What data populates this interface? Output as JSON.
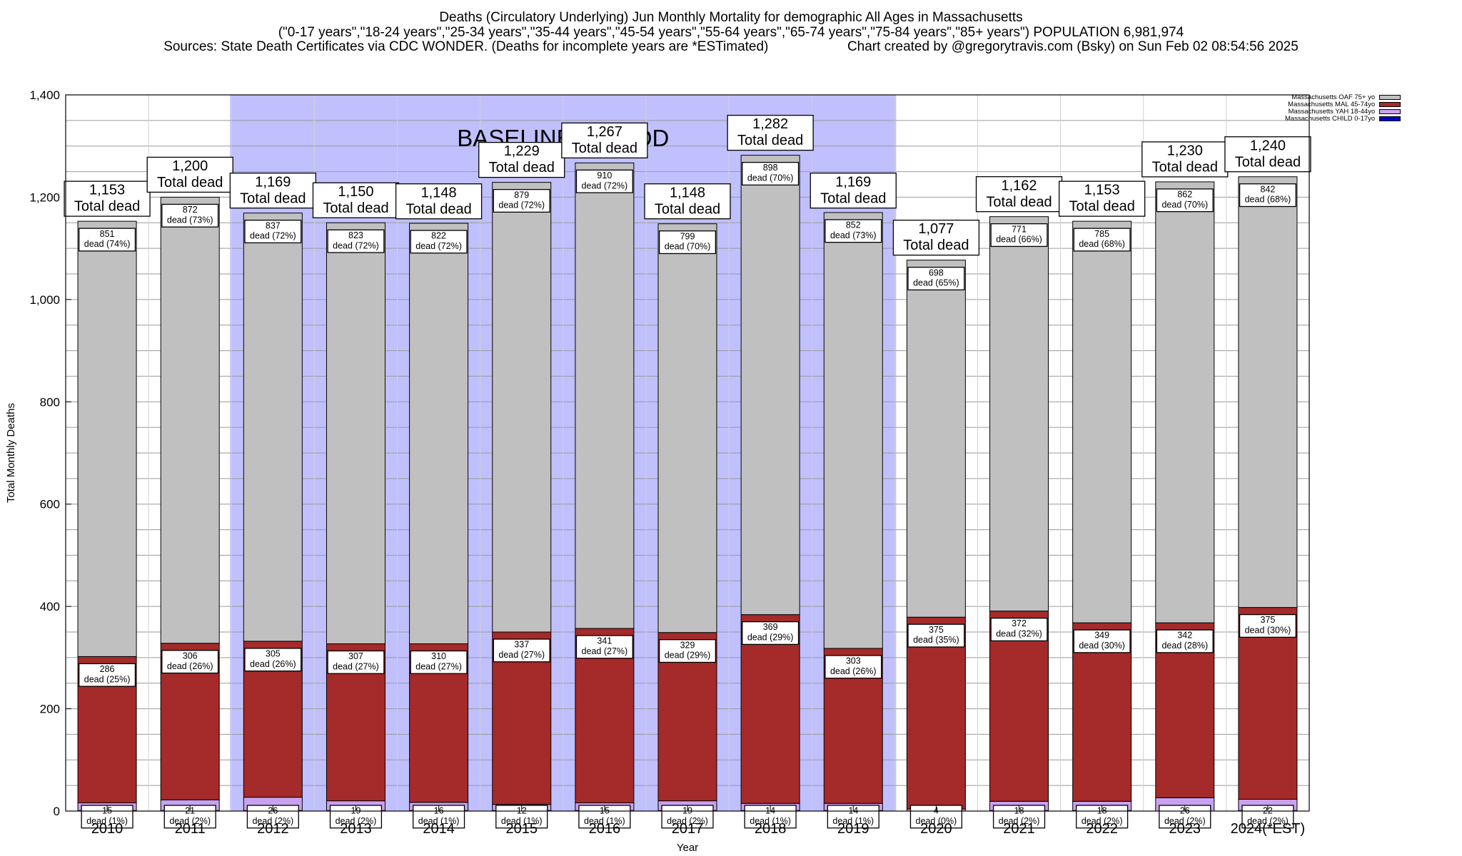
{
  "header": {
    "line1": "Deaths (Circulatory Underlying) Jun Monthly Mortality for demographic All Ages in Massachusetts",
    "line2": "(\"0-17 years\",\"18-24 years\",\"25-34 years\",\"35-44 years\",\"45-54 years\",\"55-64 years\",\"65-74 years\",\"75-84 years\",\"85+ years\") POPULATION 6,981,974",
    "line3_left": "Sources: State Death Certificates via CDC WONDER. (Deaths for incomplete years are *ESTimated)",
    "line3_right": "Chart created by @gregorytravis.com (Bsky) on Sun Feb 02 08:54:56 2025"
  },
  "legend": [
    {
      "label": "Massachusetts OAF 75+ yo",
      "color": "#c0c0c0"
    },
    {
      "label": "Massachusetts MAL 45-74yo",
      "color": "#a52a2a"
    },
    {
      "label": "Massachusetts YAH 18-44yo",
      "color": "#c8a2f0"
    },
    {
      "label": "Massachusetts CHILD 0-17yo",
      "color": "#0000cd"
    }
  ],
  "chart_data": {
    "type": "bar",
    "stacked": true,
    "title": "Deaths (Circulatory Underlying) Jun Monthly Mortality for demographic All Ages in Massachusetts",
    "xlabel": "Year",
    "ylabel": "Total Monthly Deaths",
    "ylim": [
      0,
      1400
    ],
    "yticks": [
      0,
      200,
      400,
      600,
      800,
      1000,
      1200,
      1400
    ],
    "ytick_labels": [
      "0",
      "200",
      "400",
      "600",
      "800",
      "1,000",
      "1,200",
      "1,400"
    ],
    "grid": true,
    "legend_position": "top-right",
    "baseline_label": "BASELINE PERIOD",
    "baseline_range": [
      "2012",
      "2019"
    ],
    "baseline_color": "#c0c0ff",
    "total_suffix": "Total dead",
    "dead_word": "dead",
    "categories": [
      "2010",
      "2011",
      "2012",
      "2013",
      "2014",
      "2015",
      "2016",
      "2017",
      "2018",
      "2019",
      "2020",
      "2021",
      "2022",
      "2023",
      "2024(*EST)"
    ],
    "totals": [
      1153,
      1200,
      1169,
      1150,
      1148,
      1229,
      1267,
      1148,
      1282,
      1169,
      1077,
      1162,
      1153,
      1230,
      1240
    ],
    "total_labels": [
      "1,153",
      "1,200",
      "1,169",
      "1,150",
      "1,148",
      "1,229",
      "1,267",
      "1,148",
      "1,282",
      "1,169",
      "1,077",
      "1,162",
      "1,153",
      "1,230",
      "1,240"
    ],
    "series": [
      {
        "name": "Massachusetts CHILD 0-17yo",
        "color": "#0000cd",
        "values": [
          1,
          1,
          1,
          1,
          1,
          1,
          1,
          1,
          1,
          1,
          0,
          1,
          1,
          0,
          1
        ]
      },
      {
        "name": "Massachusetts YAH 18-44yo",
        "color": "#c8a2f0",
        "values": [
          15,
          21,
          26,
          19,
          16,
          12,
          15,
          19,
          14,
          14,
          4,
          18,
          18,
          26,
          22
        ],
        "pct_labels": [
          "(1%)",
          "(2%)",
          "(2%)",
          "(2%)",
          "(1%)",
          "(1%)",
          "(1%)",
          "(2%)",
          "(1%)",
          "(1%)",
          "(0%)",
          "(2%)",
          "(2%)",
          "(2%)",
          "(2%)"
        ]
      },
      {
        "name": "Massachusetts MAL 45-74yo",
        "color": "#a52a2a",
        "values": [
          286,
          306,
          305,
          307,
          310,
          337,
          341,
          329,
          369,
          303,
          375,
          372,
          349,
          342,
          375
        ],
        "pct_labels": [
          "(25%)",
          "(26%)",
          "(26%)",
          "(27%)",
          "(27%)",
          "(27%)",
          "(27%)",
          "(29%)",
          "(29%)",
          "(26%)",
          "(35%)",
          "(32%)",
          "(30%)",
          "(28%)",
          "(30%)"
        ]
      },
      {
        "name": "Massachusetts OAF 75+ yo",
        "color": "#c0c0c0",
        "values": [
          851,
          872,
          837,
          823,
          822,
          879,
          910,
          799,
          898,
          852,
          698,
          771,
          785,
          862,
          842
        ],
        "pct_labels": [
          "(74%)",
          "(73%)",
          "(72%)",
          "(72%)",
          "(72%)",
          "(72%)",
          "(72%)",
          "(70%)",
          "(70%)",
          "(73%)",
          "(65%)",
          "(66%)",
          "(68%)",
          "(70%)",
          "(68%)"
        ]
      }
    ]
  }
}
